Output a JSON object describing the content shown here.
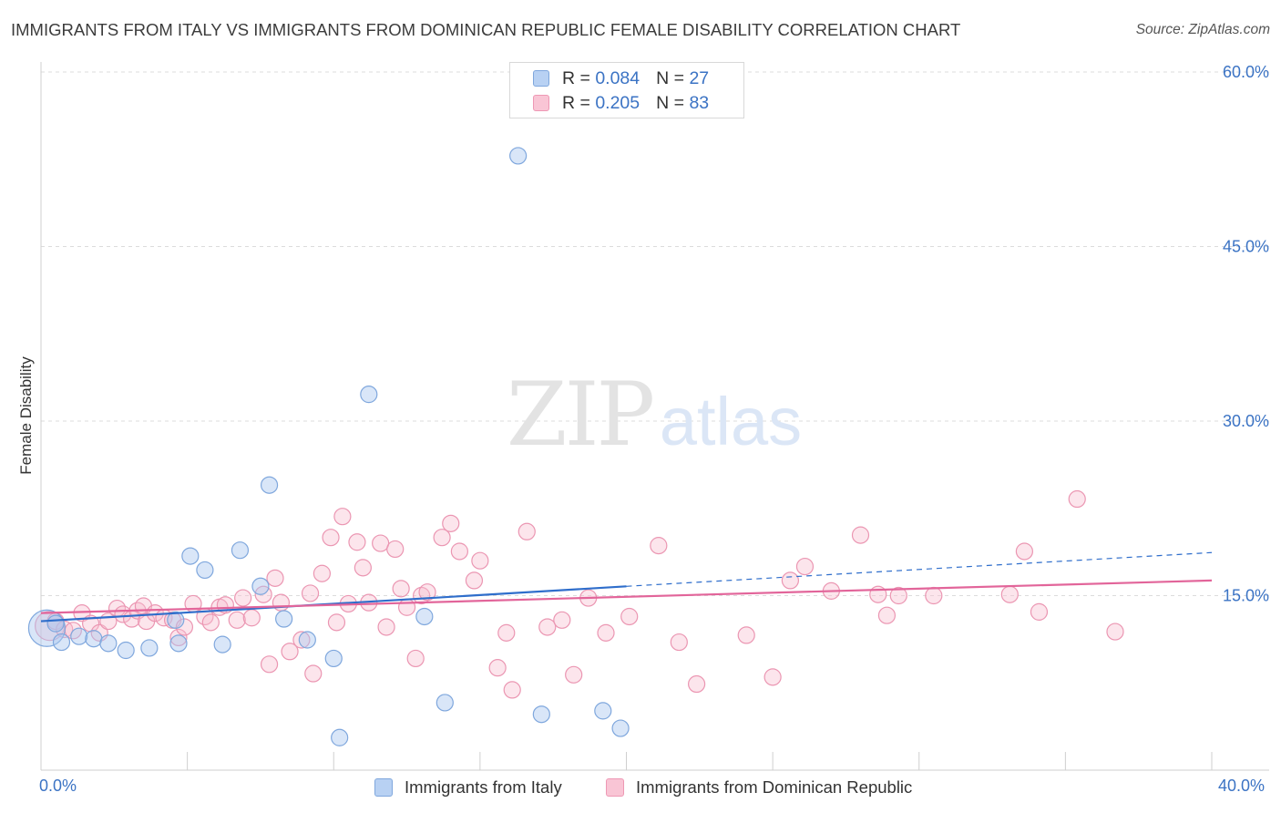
{
  "title": "IMMIGRANTS FROM ITALY VS IMMIGRANTS FROM DOMINICAN REPUBLIC FEMALE DISABILITY CORRELATION CHART",
  "source": "Source: ZipAtlas.com",
  "watermark": {
    "zip": "ZIP",
    "atlas": "atlas"
  },
  "legend": {
    "rows": [
      {
        "r_label": "R =",
        "r_value": "0.084",
        "n_label": "N =",
        "n_value": "27",
        "fill": "#b8d1f3",
        "stroke": "#7fa7dd"
      },
      {
        "r_label": "R =",
        "r_value": "0.205",
        "n_label": "N =",
        "n_value": "83",
        "fill": "#f9c5d5",
        "stroke": "#ee98b4"
      }
    ]
  },
  "colors": {
    "italy_fill": "rgba(170,199,240,0.45)",
    "italy_stroke": "#7fa7dd",
    "italy_line": "#2f6ecb",
    "dr_fill": "rgba(248,190,208,0.40)",
    "dr_stroke": "#eb96b2",
    "dr_line": "#e2659a",
    "tick_text": "#3b73c4",
    "grid": "#dcdcdc"
  },
  "chart_data": {
    "type": "scatter",
    "title": "IMMIGRANTS FROM ITALY VS IMMIGRANTS FROM DOMINICAN REPUBLIC FEMALE DISABILITY CORRELATION CHART",
    "xlabel": "",
    "ylabel": "Female Disability",
    "xlim": [
      0,
      40
    ],
    "ylim": [
      0,
      60
    ],
    "x_tick_labels": [
      {
        "value": 0,
        "label": "0.0%"
      },
      {
        "value": 40,
        "label": "40.0%"
      }
    ],
    "y_ticks": [
      {
        "value": 15,
        "label": "15.0%"
      },
      {
        "value": 30,
        "label": "30.0%"
      },
      {
        "value": 45,
        "label": "45.0%"
      },
      {
        "value": 60,
        "label": "60.0%"
      }
    ],
    "grid": true,
    "legend_position": "top-center",
    "series": [
      {
        "name": "Immigrants from Italy",
        "r": 0.084,
        "n": 27,
        "trend": {
          "x": [
            0,
            20
          ],
          "y": [
            12.8,
            15.8
          ],
          "dashed_extension": {
            "x": [
              20,
              40
            ],
            "y": [
              15.8,
              18.7
            ]
          }
        },
        "points": [
          [
            0.2,
            12.2,
            20
          ],
          [
            0.5,
            12.6,
            9
          ],
          [
            0.7,
            11.0,
            9
          ],
          [
            1.3,
            11.5,
            9
          ],
          [
            1.8,
            11.3,
            9
          ],
          [
            2.3,
            10.9,
            9
          ],
          [
            2.9,
            10.3,
            9
          ],
          [
            3.7,
            10.5,
            9
          ],
          [
            4.6,
            12.9,
            9
          ],
          [
            4.7,
            10.9,
            9
          ],
          [
            5.1,
            18.4,
            9
          ],
          [
            5.6,
            17.2,
            9
          ],
          [
            6.2,
            10.8,
            9
          ],
          [
            6.8,
            18.9,
            9
          ],
          [
            7.5,
            15.8,
            9
          ],
          [
            7.8,
            24.5,
            9
          ],
          [
            8.3,
            13.0,
            9
          ],
          [
            9.1,
            11.2,
            9
          ],
          [
            10.0,
            9.6,
            9
          ],
          [
            10.2,
            2.8,
            9
          ],
          [
            11.2,
            32.3,
            9
          ],
          [
            13.1,
            13.2,
            9
          ],
          [
            13.8,
            5.8,
            9
          ],
          [
            16.3,
            52.8,
            9
          ],
          [
            17.1,
            4.8,
            9
          ],
          [
            19.2,
            5.1,
            9
          ],
          [
            19.8,
            3.6,
            9
          ]
        ]
      },
      {
        "name": "Immigrants from Dominican Republic",
        "r": 0.205,
        "n": 83,
        "trend": {
          "x": [
            0,
            40
          ],
          "y": [
            13.5,
            16.3
          ]
        },
        "points": [
          [
            0.3,
            12.4,
            16
          ],
          [
            0.5,
            12.8,
            9
          ],
          [
            0.8,
            12.1,
            9
          ],
          [
            1.1,
            12.0,
            9
          ],
          [
            1.4,
            13.5,
            9
          ],
          [
            1.7,
            12.6,
            9
          ],
          [
            2.0,
            11.8,
            9
          ],
          [
            2.3,
            12.8,
            9
          ],
          [
            2.6,
            13.9,
            9
          ],
          [
            2.8,
            13.4,
            9
          ],
          [
            3.1,
            13.0,
            9
          ],
          [
            3.3,
            13.7,
            9
          ],
          [
            3.5,
            14.1,
            9
          ],
          [
            3.6,
            12.8,
            9
          ],
          [
            3.9,
            13.5,
            9
          ],
          [
            4.2,
            13.1,
            9
          ],
          [
            4.5,
            12.9,
            9
          ],
          [
            4.7,
            11.4,
            9
          ],
          [
            4.9,
            12.3,
            9
          ],
          [
            5.2,
            14.3,
            9
          ],
          [
            5.6,
            13.2,
            9
          ],
          [
            5.8,
            12.7,
            9
          ],
          [
            6.1,
            14.0,
            9
          ],
          [
            6.3,
            14.2,
            9
          ],
          [
            6.7,
            12.9,
            9
          ],
          [
            6.9,
            14.8,
            9
          ],
          [
            7.2,
            13.1,
            9
          ],
          [
            7.6,
            15.1,
            9
          ],
          [
            7.8,
            9.1,
            9
          ],
          [
            8.0,
            16.5,
            9
          ],
          [
            8.2,
            14.4,
            9
          ],
          [
            8.5,
            10.2,
            9
          ],
          [
            8.9,
            11.2,
            9
          ],
          [
            9.2,
            15.2,
            9
          ],
          [
            9.3,
            8.3,
            9
          ],
          [
            9.6,
            16.9,
            9
          ],
          [
            9.9,
            20.0,
            9
          ],
          [
            10.1,
            12.7,
            9
          ],
          [
            10.3,
            21.8,
            9
          ],
          [
            10.5,
            14.3,
            9
          ],
          [
            10.8,
            19.6,
            9
          ],
          [
            11.0,
            17.4,
            9
          ],
          [
            11.2,
            14.4,
            9
          ],
          [
            11.6,
            19.5,
            9
          ],
          [
            11.8,
            12.3,
            9
          ],
          [
            12.1,
            19.0,
            9
          ],
          [
            12.3,
            15.6,
            9
          ],
          [
            12.5,
            14.0,
            9
          ],
          [
            12.8,
            9.6,
            9
          ],
          [
            13.0,
            15.0,
            9
          ],
          [
            13.2,
            15.3,
            9
          ],
          [
            13.7,
            20.0,
            9
          ],
          [
            14.0,
            21.2,
            9
          ],
          [
            14.3,
            18.8,
            9
          ],
          [
            14.8,
            16.3,
            9
          ],
          [
            15.0,
            18.0,
            9
          ],
          [
            15.6,
            8.8,
            9
          ],
          [
            15.9,
            11.8,
            9
          ],
          [
            16.1,
            6.9,
            9
          ],
          [
            16.6,
            20.5,
            9
          ],
          [
            17.3,
            12.3,
            9
          ],
          [
            17.8,
            12.9,
            9
          ],
          [
            18.2,
            8.2,
            9
          ],
          [
            18.7,
            14.8,
            9
          ],
          [
            19.3,
            11.8,
            9
          ],
          [
            20.1,
            13.2,
            9
          ],
          [
            21.1,
            19.3,
            9
          ],
          [
            21.8,
            11.0,
            9
          ],
          [
            22.4,
            7.4,
            9
          ],
          [
            24.1,
            11.6,
            9
          ],
          [
            25.0,
            8.0,
            9
          ],
          [
            25.6,
            16.3,
            9
          ],
          [
            26.1,
            17.5,
            9
          ],
          [
            27.0,
            15.4,
            9
          ],
          [
            28.0,
            20.2,
            9
          ],
          [
            28.6,
            15.1,
            9
          ],
          [
            28.9,
            13.3,
            9
          ],
          [
            29.3,
            15.0,
            9
          ],
          [
            30.5,
            15.0,
            9
          ],
          [
            33.1,
            15.1,
            9
          ],
          [
            33.6,
            18.8,
            9
          ],
          [
            34.1,
            13.6,
            9
          ],
          [
            35.4,
            23.3,
            9
          ],
          [
            36.7,
            11.9,
            9
          ]
        ]
      }
    ]
  }
}
